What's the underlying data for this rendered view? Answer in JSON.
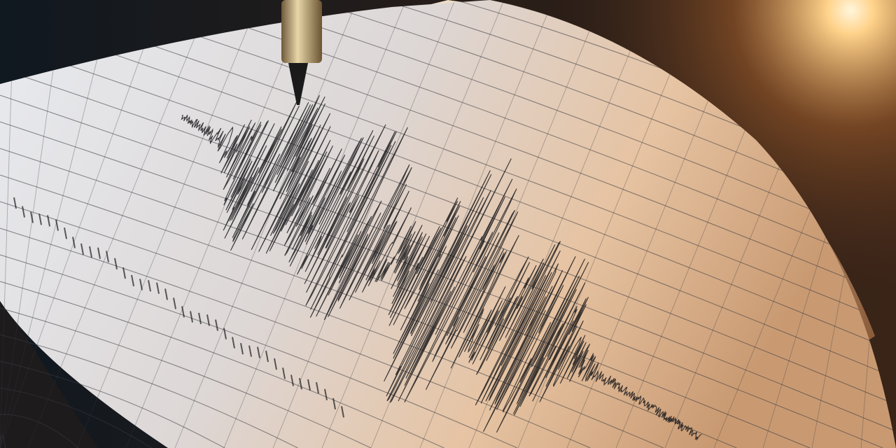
{
  "scene": {
    "subject": "seismograph",
    "colors": {
      "background_dark": "#15181d",
      "light_glow": "#ffd28a",
      "paper_cool": "#e6e9ee",
      "paper_warm": "#e9c9a8",
      "grid_line": "#3a3a40",
      "trace_ink": "#1b1b1d",
      "pen_gold": "#b89a66"
    }
  }
}
